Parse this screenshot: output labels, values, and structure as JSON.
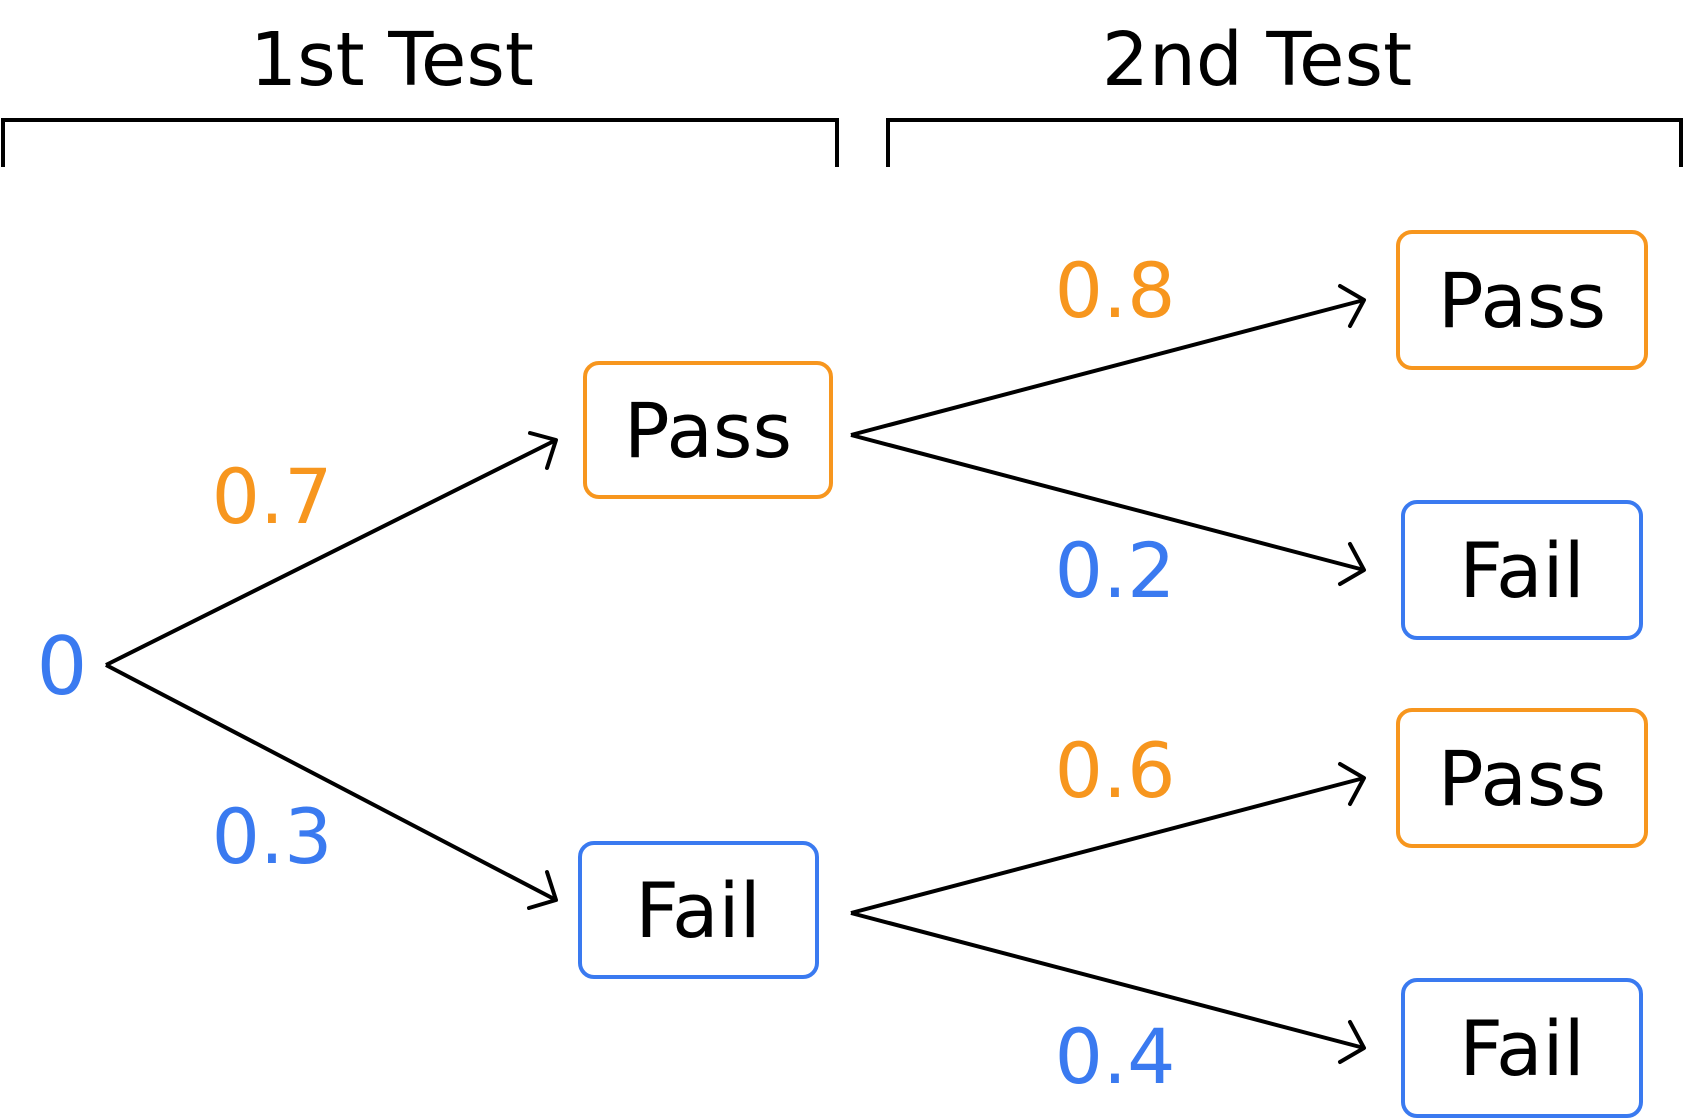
{
  "headers": {
    "first": "1st Test",
    "second": "2nd Test"
  },
  "root": {
    "label": "0"
  },
  "tree": {
    "first_test": {
      "pass": {
        "label": "Pass",
        "prob": "0.7"
      },
      "fail": {
        "label": "Fail",
        "prob": "0.3"
      }
    },
    "second_test": {
      "after_pass": {
        "pass": {
          "label": "Pass",
          "prob": "0.8"
        },
        "fail": {
          "label": "Fail",
          "prob": "0.2"
        }
      },
      "after_fail": {
        "pass": {
          "label": "Pass",
          "prob": "0.6"
        },
        "fail": {
          "label": "Fail",
          "prob": "0.4"
        }
      }
    }
  },
  "colors": {
    "pass": "#f7961e",
    "fail": "#3a7af0",
    "line": "#000000"
  }
}
